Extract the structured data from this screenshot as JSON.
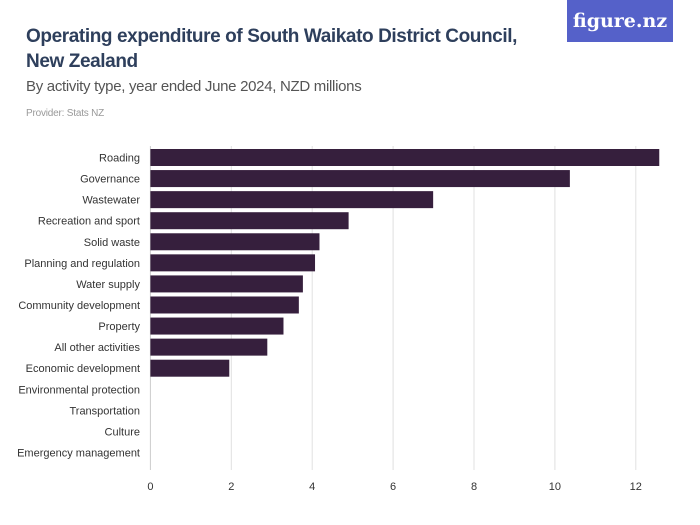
{
  "header": {
    "title": "Operating expenditure of South Waikato District Council, New Zealand",
    "subtitle": "By activity type, year ended June 2024, NZD millions",
    "provider": "Provider: Stats NZ",
    "logo": "figure.nz"
  },
  "chart_data": {
    "type": "bar",
    "orientation": "horizontal",
    "title": "Operating expenditure of South Waikato District Council, New Zealand",
    "subtitle": "By activity type, year ended June 2024, NZD millions",
    "categories": [
      "Roading",
      "Governance",
      "Wastewater",
      "Recreation and sport",
      "Solid waste",
      "Planning and regulation",
      "Water supply",
      "Community development",
      "Property",
      "All other activities",
      "Economic development",
      "Environmental protection",
      "Transportation",
      "Culture",
      "Emergency management"
    ],
    "values": [
      12.58,
      10.37,
      6.99,
      4.9,
      4.18,
      4.07,
      3.77,
      3.67,
      3.29,
      2.89,
      1.95,
      0,
      0,
      0,
      0
    ],
    "xlim": [
      0,
      12.7
    ],
    "xticks": [
      0,
      2,
      4,
      6,
      8,
      10,
      12
    ],
    "grid": true,
    "colors": {
      "bar": "#361f3d",
      "grid": "#e0e0e0"
    }
  }
}
